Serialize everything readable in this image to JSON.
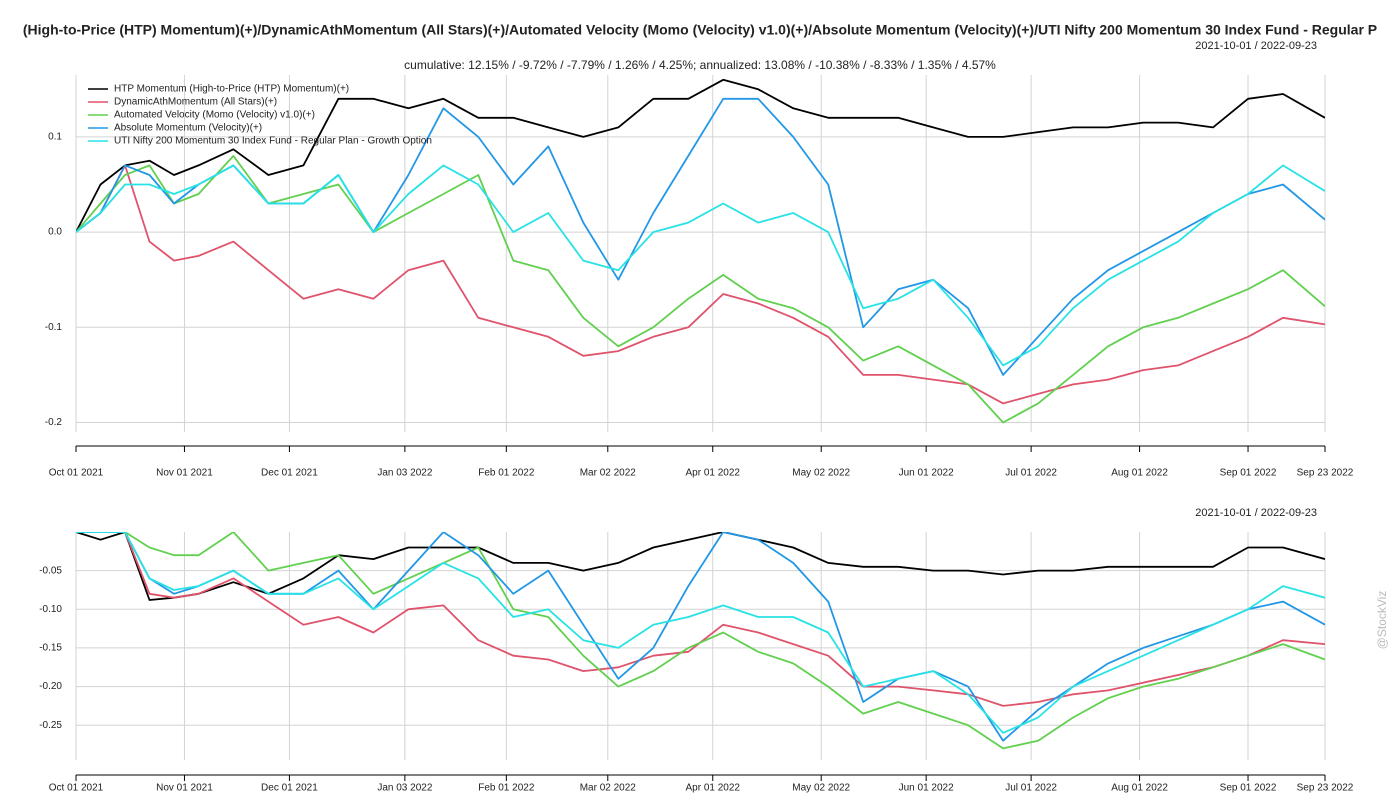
{
  "watermark": "@StockViz",
  "chart_data": [
    {
      "type": "line",
      "title": "(High-to-Price (HTP) Momentum)(+)/DynamicAthMomentum (All Stars)(+)/Automated Velocity (Momo (Velocity) v1.0)(+)/Absolute Momentum (Velocity)(+)/UTI Nifty 200 Momentum 30 Index Fund - Regular P",
      "subtitle": "2021-10-01 / 2022-09-23",
      "annotation": "cumulative: 12.15% / -9.72% / -7.79% / 1.26% / 4.25%; annualized: 13.08% / -10.38% / -8.33% / 1.35% / 4.57%",
      "legend": "topleft",
      "grid": true,
      "xlim": [
        "2021-10-01",
        "2022-09-23"
      ],
      "xticks": [
        {
          "value": "2021-10-01",
          "label": "Oct 01 2021"
        },
        {
          "value": "2021-11-01",
          "label": "Nov 01 2021"
        },
        {
          "value": "2021-12-01",
          "label": "Dec 01 2021"
        },
        {
          "value": "2022-01-03",
          "label": "Jan 03 2022"
        },
        {
          "value": "2022-02-01",
          "label": "Feb 01 2022"
        },
        {
          "value": "2022-03-02",
          "label": "Mar 02 2022"
        },
        {
          "value": "2022-04-01",
          "label": "Apr 01 2022"
        },
        {
          "value": "2022-05-02",
          "label": "May 02 2022"
        },
        {
          "value": "2022-06-01",
          "label": "Jun 01 2022"
        },
        {
          "value": "2022-07-01",
          "label": "Jul 01 2022"
        },
        {
          "value": "2022-08-01",
          "label": "Aug 01 2022"
        },
        {
          "value": "2022-09-01",
          "label": "Sep 01 2022"
        },
        {
          "value": "2022-09-23",
          "label": "Sep 23 2022"
        }
      ],
      "ylim": [
        -0.21,
        0.165
      ],
      "yticks": [
        -0.2,
        -0.1,
        {
          "value": 0,
          "label": "0.0"
        },
        0.1
      ],
      "x": [
        "2021-10-01",
        "2021-10-08",
        "2021-10-15",
        "2021-10-22",
        "2021-10-29",
        "2021-11-05",
        "2021-11-15",
        "2021-11-25",
        "2021-12-05",
        "2021-12-15",
        "2021-12-25",
        "2022-01-04",
        "2022-01-14",
        "2022-01-24",
        "2022-02-03",
        "2022-02-13",
        "2022-02-23",
        "2022-03-05",
        "2022-03-15",
        "2022-03-25",
        "2022-04-04",
        "2022-04-14",
        "2022-04-24",
        "2022-05-04",
        "2022-05-14",
        "2022-05-24",
        "2022-06-03",
        "2022-06-13",
        "2022-06-23",
        "2022-07-03",
        "2022-07-13",
        "2022-07-23",
        "2022-08-02",
        "2022-08-12",
        "2022-08-22",
        "2022-09-01",
        "2022-09-11",
        "2022-09-23"
      ],
      "series": [
        {
          "name": "HTP Momentum (High-to-Price (HTP) Momentum)(+)",
          "color": "#000000",
          "values": [
            0,
            0.05,
            0.07,
            0.075,
            0.06,
            0.07,
            0.087,
            0.06,
            0.07,
            0.14,
            0.14,
            0.13,
            0.14,
            0.12,
            0.12,
            0.11,
            0.1,
            0.11,
            0.14,
            0.14,
            0.16,
            0.15,
            0.13,
            0.12,
            0.12,
            0.12,
            0.11,
            0.1,
            0.1,
            0.105,
            0.11,
            0.11,
            0.115,
            0.115,
            0.11,
            0.14,
            0.145,
            0.12
          ]
        },
        {
          "name": "DynamicAthMomentum (All Stars)(+)",
          "color": "#df536b",
          "values": [
            0,
            0.02,
            0.07,
            -0.01,
            -0.03,
            -0.025,
            -0.01,
            -0.04,
            -0.07,
            -0.06,
            -0.07,
            -0.04,
            -0.03,
            -0.09,
            -0.1,
            -0.11,
            -0.13,
            -0.125,
            -0.11,
            -0.1,
            -0.065,
            -0.075,
            -0.09,
            -0.11,
            -0.15,
            -0.15,
            -0.155,
            -0.16,
            -0.18,
            -0.17,
            -0.16,
            -0.155,
            -0.145,
            -0.14,
            -0.125,
            -0.11,
            -0.09,
            -0.097
          ]
        },
        {
          "name": "Automated Velocity (Momo (Velocity) v1.0)(+)",
          "color": "#61d04f",
          "values": [
            0,
            0.03,
            0.06,
            0.07,
            0.03,
            0.04,
            0.08,
            0.03,
            0.04,
            0.05,
            0,
            0.02,
            0.04,
            0.06,
            -0.03,
            -0.04,
            -0.09,
            -0.12,
            -0.1,
            -0.07,
            -0.045,
            -0.07,
            -0.08,
            -0.1,
            -0.135,
            -0.12,
            -0.14,
            -0.16,
            -0.2,
            -0.18,
            -0.15,
            -0.12,
            -0.1,
            -0.09,
            -0.075,
            -0.06,
            -0.04,
            -0.078
          ]
        },
        {
          "name": "Absolute Momentum (Velocity)(+)",
          "color": "#2297e6",
          "values": [
            0,
            0.02,
            0.07,
            0.06,
            0.03,
            0.05,
            0.07,
            0.03,
            0.03,
            0.06,
            0,
            0.06,
            0.13,
            0.1,
            0.05,
            0.09,
            0.01,
            -0.05,
            0.02,
            0.08,
            0.14,
            0.14,
            0.1,
            0.05,
            -0.1,
            -0.06,
            -0.05,
            -0.08,
            -0.15,
            -0.11,
            -0.07,
            -0.04,
            -0.02,
            0,
            0.02,
            0.04,
            0.05,
            0.013
          ]
        },
        {
          "name": "UTI Nifty 200 Momentum 30 Index Fund - Regular Plan - Growth Option",
          "color": "#28e2e5",
          "values": [
            0,
            0.02,
            0.05,
            0.05,
            0.04,
            0.05,
            0.07,
            0.03,
            0.03,
            0.06,
            0,
            0.04,
            0.07,
            0.05,
            0,
            0.02,
            -0.03,
            -0.04,
            0,
            0.01,
            0.03,
            0.01,
            0.02,
            0,
            -0.08,
            -0.07,
            -0.05,
            -0.09,
            -0.14,
            -0.12,
            -0.08,
            -0.05,
            -0.03,
            -0.01,
            0.02,
            0.04,
            0.07,
            0.043
          ]
        }
      ]
    },
    {
      "type": "line",
      "subtitle": "2021-10-01 / 2022-09-23",
      "grid": true,
      "xlim": [
        "2021-10-01",
        "2022-09-23"
      ],
      "xticks": [
        {
          "value": "2021-10-01",
          "label": "Oct 01 2021"
        },
        {
          "value": "2021-11-01",
          "label": "Nov 01 2021"
        },
        {
          "value": "2021-12-01",
          "label": "Dec 01 2021"
        },
        {
          "value": "2022-01-03",
          "label": "Jan 03 2022"
        },
        {
          "value": "2022-02-01",
          "label": "Feb 01 2022"
        },
        {
          "value": "2022-03-02",
          "label": "Mar 02 2022"
        },
        {
          "value": "2022-04-01",
          "label": "Apr 01 2022"
        },
        {
          "value": "2022-05-02",
          "label": "May 02 2022"
        },
        {
          "value": "2022-06-01",
          "label": "Jun 01 2022"
        },
        {
          "value": "2022-07-01",
          "label": "Jul 01 2022"
        },
        {
          "value": "2022-08-01",
          "label": "Aug 01 2022"
        },
        {
          "value": "2022-09-01",
          "label": "Sep 01 2022"
        },
        {
          "value": "2022-09-23",
          "label": "Sep 23 2022"
        }
      ],
      "ylim": [
        -0.295,
        0
      ],
      "yticks": [
        -0.25,
        {
          "value": -0.2,
          "label": "-0.20"
        },
        -0.15,
        {
          "value": -0.1,
          "label": "-0.10"
        },
        -0.05
      ],
      "x": [
        "2021-10-01",
        "2021-10-08",
        "2021-10-15",
        "2021-10-22",
        "2021-10-29",
        "2021-11-05",
        "2021-11-15",
        "2021-11-25",
        "2021-12-05",
        "2021-12-15",
        "2021-12-25",
        "2022-01-04",
        "2022-01-14",
        "2022-01-24",
        "2022-02-03",
        "2022-02-13",
        "2022-02-23",
        "2022-03-05",
        "2022-03-15",
        "2022-03-25",
        "2022-04-04",
        "2022-04-14",
        "2022-04-24",
        "2022-05-04",
        "2022-05-14",
        "2022-05-24",
        "2022-06-03",
        "2022-06-13",
        "2022-06-23",
        "2022-07-03",
        "2022-07-13",
        "2022-07-23",
        "2022-08-02",
        "2022-08-12",
        "2022-08-22",
        "2022-09-01",
        "2022-09-11",
        "2022-09-23"
      ],
      "series": [
        {
          "color": "#000000",
          "values": [
            0,
            -0.01,
            0,
            -0.088,
            -0.085,
            -0.08,
            -0.065,
            -0.08,
            -0.06,
            -0.03,
            -0.035,
            -0.02,
            -0.02,
            -0.02,
            -0.04,
            -0.04,
            -0.05,
            -0.04,
            -0.02,
            -0.01,
            0,
            -0.01,
            -0.02,
            -0.04,
            -0.045,
            -0.045,
            -0.05,
            -0.05,
            -0.055,
            -0.05,
            -0.05,
            -0.045,
            -0.045,
            -0.045,
            -0.045,
            -0.02,
            -0.02,
            -0.035
          ]
        },
        {
          "color": "#df536b",
          "values": [
            0,
            0,
            0,
            -0.08,
            -0.085,
            -0.08,
            -0.06,
            -0.09,
            -0.12,
            -0.11,
            -0.13,
            -0.1,
            -0.095,
            -0.14,
            -0.16,
            -0.165,
            -0.18,
            -0.175,
            -0.16,
            -0.155,
            -0.12,
            -0.13,
            -0.145,
            -0.16,
            -0.2,
            -0.2,
            -0.205,
            -0.21,
            -0.225,
            -0.22,
            -0.21,
            -0.205,
            -0.195,
            -0.185,
            -0.175,
            -0.16,
            -0.14,
            -0.145
          ]
        },
        {
          "color": "#61d04f",
          "values": [
            0,
            0,
            0,
            -0.02,
            -0.03,
            -0.03,
            0,
            -0.05,
            -0.04,
            -0.03,
            -0.08,
            -0.06,
            -0.04,
            -0.02,
            -0.1,
            -0.11,
            -0.16,
            -0.2,
            -0.18,
            -0.15,
            -0.13,
            -0.155,
            -0.17,
            -0.2,
            -0.235,
            -0.22,
            -0.235,
            -0.25,
            -0.28,
            -0.27,
            -0.24,
            -0.215,
            -0.2,
            -0.19,
            -0.175,
            -0.16,
            -0.145,
            -0.165
          ]
        },
        {
          "color": "#2297e6",
          "values": [
            0,
            0,
            0,
            -0.06,
            -0.08,
            -0.07,
            -0.05,
            -0.08,
            -0.08,
            -0.05,
            -0.1,
            -0.05,
            0,
            -0.03,
            -0.08,
            -0.05,
            -0.12,
            -0.19,
            -0.15,
            -0.07,
            0,
            -0.01,
            -0.04,
            -0.09,
            -0.22,
            -0.19,
            -0.18,
            -0.2,
            -0.27,
            -0.23,
            -0.2,
            -0.17,
            -0.15,
            -0.135,
            -0.12,
            -0.1,
            -0.09,
            -0.12
          ]
        },
        {
          "color": "#28e2e5",
          "values": [
            0,
            0,
            0,
            -0.06,
            -0.075,
            -0.07,
            -0.05,
            -0.08,
            -0.08,
            -0.06,
            -0.1,
            -0.07,
            -0.04,
            -0.06,
            -0.11,
            -0.1,
            -0.14,
            -0.15,
            -0.12,
            -0.11,
            -0.095,
            -0.11,
            -0.11,
            -0.13,
            -0.2,
            -0.19,
            -0.18,
            -0.21,
            -0.26,
            -0.24,
            -0.2,
            -0.18,
            -0.16,
            -0.14,
            -0.12,
            -0.1,
            -0.07,
            -0.085
          ]
        }
      ]
    }
  ]
}
